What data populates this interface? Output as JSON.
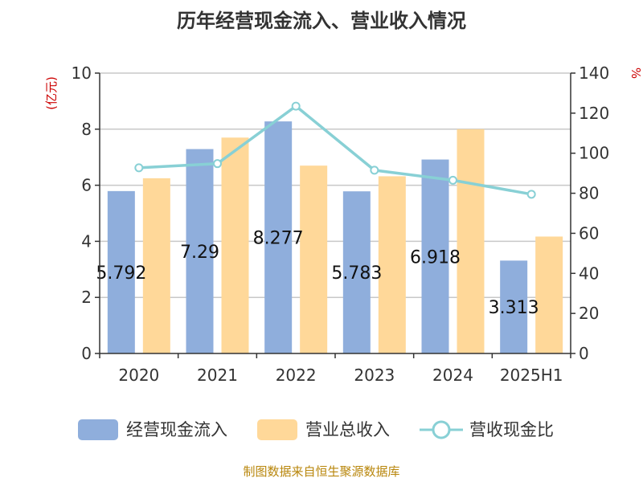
{
  "chart_data": {
    "type": "bar",
    "title": "历年经营现金流入、营业收入情况",
    "categories": [
      "2020",
      "2021",
      "2022",
      "2023",
      "2024",
      "2025H1"
    ],
    "series": [
      {
        "name": "经营现金流入",
        "type": "bar",
        "axis": "left",
        "color": "#8FAEDC",
        "values": [
          5.792,
          7.29,
          8.277,
          5.783,
          6.918,
          3.313
        ]
      },
      {
        "name": "营业总收入",
        "type": "bar",
        "axis": "left",
        "color": "#FFD899",
        "values": [
          6.25,
          7.7,
          6.7,
          6.32,
          8.0,
          4.17
        ]
      },
      {
        "name": "营收现金比",
        "type": "line",
        "axis": "right",
        "color": "#88D0D5",
        "values": [
          92.7,
          94.8,
          123.5,
          91.5,
          86.5,
          79.5
        ]
      }
    ],
    "data_labels": [
      "5.792",
      "7.29",
      "8.277",
      "5.783",
      "6.918",
      "3.313"
    ],
    "y_left": {
      "label": "(亿元)",
      "min": 0,
      "max": 10,
      "ticks": [
        "0",
        "2",
        "4",
        "6",
        "8",
        "10"
      ]
    },
    "y_right": {
      "label": "%",
      "min": 0,
      "max": 140,
      "ticks": [
        "0",
        "20",
        "40",
        "60",
        "80",
        "100",
        "120",
        "140"
      ]
    },
    "grid": true,
    "legend_position": "bottom",
    "axis_label_color": "#CC0000"
  },
  "footer": {
    "source": "制图数据来自恒生聚源数据库"
  }
}
